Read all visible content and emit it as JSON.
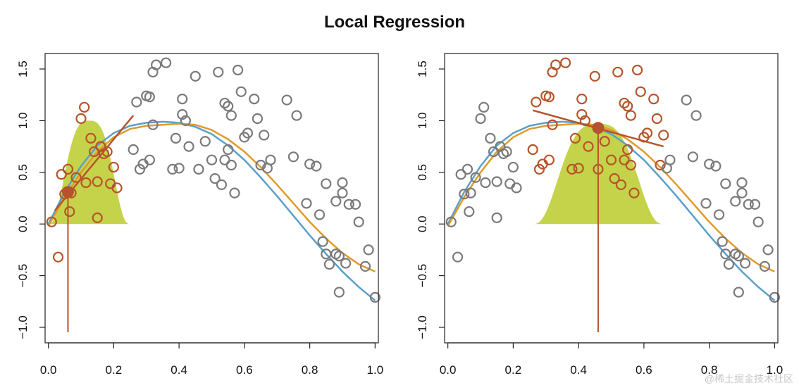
{
  "title": "Local Regression",
  "watermark": "@稀土掘金技术社区",
  "colors": {
    "gray_points": "#7a7a7a",
    "window_points": "#b5542a",
    "kernel_fill": "#c5d34a",
    "true_curve": "#5aa0c8",
    "loess_curve": "#e09a2a",
    "local_fit": "#b5542a",
    "axis": "#222222"
  },
  "chart_data": [
    {
      "type": "scatter",
      "panel": "left",
      "xlim": [
        -0.01,
        1.01
      ],
      "ylim": [
        -1.15,
        1.65
      ],
      "x_ticks": [
        "0.0",
        "0.2",
        "0.4",
        "0.6",
        "0.8",
        "1.0"
      ],
      "x_tick_values": [
        0,
        0.2,
        0.4,
        0.6,
        0.8,
        1.0
      ],
      "y_ticks": [
        "−1.0",
        "−0.5",
        "0.0",
        "0.5",
        "1.0",
        "1.5"
      ],
      "y_tick_values": [
        -1.0,
        -0.5,
        0.0,
        0.5,
        1.0,
        1.5
      ],
      "target_x": 0.06,
      "target_y": 0.31,
      "window": [
        0.0,
        0.25
      ],
      "kernel_height": 1.0,
      "local_fit": {
        "x": [
          0.02,
          0.26
        ],
        "y": [
          0.13,
          1.05
        ]
      }
    },
    {
      "type": "scatter",
      "panel": "right",
      "xlim": [
        -0.01,
        1.01
      ],
      "ylim": [
        -1.15,
        1.65
      ],
      "x_ticks": [
        "0.0",
        "0.2",
        "0.4",
        "0.6",
        "0.8",
        "1.0"
      ],
      "x_tick_values": [
        0,
        0.2,
        0.4,
        0.6,
        0.8,
        1.0
      ],
      "y_ticks": [
        "−1.0",
        "−0.5",
        "0.0",
        "0.5",
        "1.0",
        "1.5"
      ],
      "y_tick_values": [
        -1.0,
        -0.5,
        0.0,
        0.5,
        1.0,
        1.5
      ],
      "target_x": 0.46,
      "target_y": 0.93,
      "window": [
        0.26,
        0.66
      ],
      "kernel_height": 0.97,
      "local_fit": {
        "x": [
          0.26,
          0.66
        ],
        "y": [
          1.1,
          0.75
        ]
      }
    }
  ],
  "points": {
    "x": [
      0.01,
      0.03,
      0.04,
      0.05,
      0.06,
      0.065,
      0.07,
      0.085,
      0.1,
      0.11,
      0.115,
      0.13,
      0.14,
      0.15,
      0.15,
      0.16,
      0.17,
      0.18,
      0.19,
      0.2,
      0.21,
      0.26,
      0.27,
      0.28,
      0.29,
      0.3,
      0.31,
      0.31,
      0.32,
      0.32,
      0.33,
      0.36,
      0.38,
      0.39,
      0.4,
      0.41,
      0.41,
      0.42,
      0.43,
      0.45,
      0.46,
      0.48,
      0.5,
      0.51,
      0.52,
      0.53,
      0.54,
      0.54,
      0.55,
      0.55,
      0.56,
      0.56,
      0.57,
      0.58,
      0.59,
      0.6,
      0.61,
      0.63,
      0.64,
      0.65,
      0.66,
      0.67,
      0.68,
      0.73,
      0.75,
      0.76,
      0.79,
      0.8,
      0.82,
      0.83,
      0.84,
      0.85,
      0.85,
      0.86,
      0.88,
      0.88,
      0.89,
      0.89,
      0.9,
      0.9,
      0.91,
      0.92,
      0.94,
      0.95,
      0.97,
      0.98,
      1.0
    ],
    "y": [
      0.02,
      -0.32,
      0.48,
      0.29,
      0.53,
      0.12,
      0.3,
      0.45,
      1.02,
      1.13,
      0.4,
      0.83,
      0.7,
      0.06,
      0.41,
      0.75,
      0.68,
      0.7,
      0.39,
      0.55,
      0.35,
      0.72,
      1.18,
      0.53,
      0.58,
      1.24,
      1.23,
      0.62,
      0.96,
      1.47,
      1.54,
      1.56,
      0.53,
      0.83,
      0.54,
      1.21,
      1.06,
      1.0,
      0.75,
      1.43,
      0.53,
      0.8,
      0.62,
      0.44,
      1.47,
      0.38,
      1.17,
      0.62,
      1.14,
      0.72,
      0.57,
      1.05,
      0.3,
      1.49,
      1.28,
      0.84,
      0.88,
      1.21,
      1.02,
      0.57,
      0.86,
      0.54,
      0.62,
      1.2,
      0.65,
      1.05,
      0.2,
      0.58,
      0.56,
      0.09,
      -0.17,
      0.39,
      -0.29,
      -0.39,
      0.22,
      -0.29,
      -0.31,
      -0.66,
      0.4,
      0.3,
      -0.38,
      0.19,
      0.19,
      0.02,
      -0.41,
      -0.25,
      -0.71
    ],
    "symbol": "open-circle"
  },
  "curves": {
    "x": [
      0.0,
      0.05,
      0.1,
      0.15,
      0.2,
      0.25,
      0.3,
      0.35,
      0.4,
      0.45,
      0.5,
      0.55,
      0.6,
      0.65,
      0.7,
      0.75,
      0.8,
      0.85,
      0.9,
      0.95,
      1.0
    ],
    "true_y": [
      0.0,
      0.31,
      0.56,
      0.76,
      0.88,
      0.95,
      0.98,
      0.99,
      0.98,
      0.94,
      0.87,
      0.76,
      0.62,
      0.45,
      0.27,
      0.08,
      -0.11,
      -0.29,
      -0.46,
      -0.61,
      -0.74
    ],
    "loess_y": [
      -0.02,
      0.26,
      0.5,
      0.7,
      0.84,
      0.92,
      0.95,
      0.96,
      0.97,
      0.96,
      0.91,
      0.82,
      0.7,
      0.55,
      0.38,
      0.2,
      0.02,
      -0.14,
      -0.28,
      -0.39,
      -0.46
    ]
  }
}
